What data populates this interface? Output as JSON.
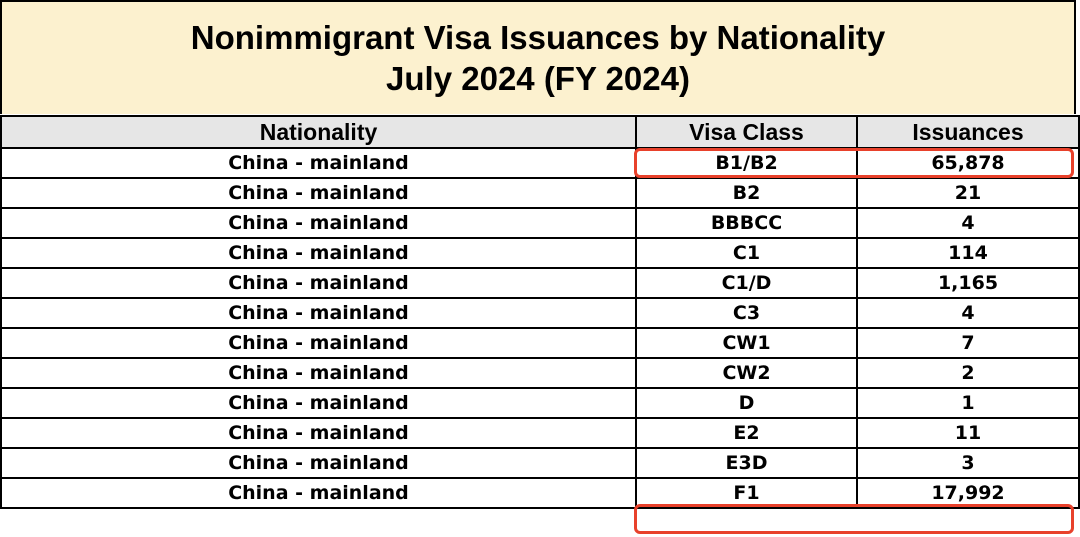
{
  "title": {
    "line1": "Nonimmigrant Visa Issuances by Nationality",
    "line2": "July 2024 (FY 2024)"
  },
  "headers": [
    "Nationality",
    "Visa Class",
    "Issuances"
  ],
  "rows": [
    [
      "China - mainland",
      "B1/B2",
      "65,878"
    ],
    [
      "China - mainland",
      "B2",
      "21"
    ],
    [
      "China - mainland",
      "BBBCC",
      "4"
    ],
    [
      "China - mainland",
      "C1",
      "114"
    ],
    [
      "China - mainland",
      "C1/D",
      "1,165"
    ],
    [
      "China - mainland",
      "C3",
      "4"
    ],
    [
      "China - mainland",
      "CW1",
      "7"
    ],
    [
      "China - mainland",
      "CW2",
      "2"
    ],
    [
      "China - mainland",
      "D",
      "1"
    ],
    [
      "China - mainland",
      "E2",
      "11"
    ],
    [
      "China - mainland",
      "E3D",
      "3"
    ],
    [
      "China - mainland",
      "F1",
      "17,992"
    ]
  ],
  "highlight_color": "#e8412b",
  "highlighted_rows": [
    "B1/B2",
    "F1"
  ]
}
